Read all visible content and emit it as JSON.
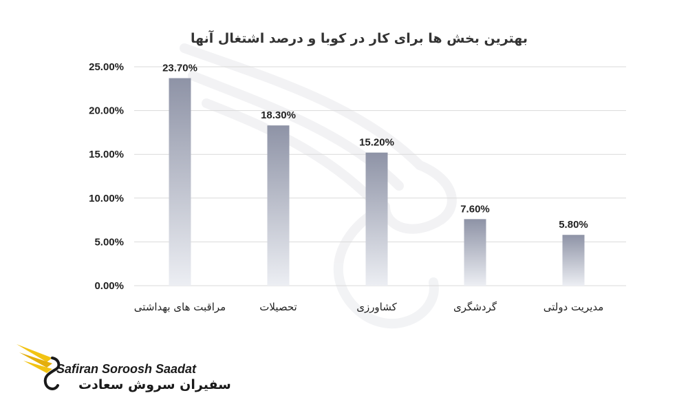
{
  "chart_data": {
    "type": "bar",
    "title": "بهترین بخش ها برای کار در کوبا و درصد اشتغال آنها",
    "categories": [
      "مراقبت های بهداشتی",
      "تحصیلات",
      "کشاورزی",
      "گردشگری",
      "مدیریت دولتی"
    ],
    "values": [
      23.7,
      18.3,
      15.2,
      7.6,
      5.8
    ],
    "data_labels": [
      "23.70%",
      "18.30%",
      "15.20%",
      "7.60%",
      "5.80%"
    ],
    "yticks": [
      "0.00%",
      "5.00%",
      "10.00%",
      "15.00%",
      "20.00%",
      "25.00%"
    ],
    "ylim": [
      0,
      25
    ],
    "grid": true,
    "legend": "none",
    "bar_gradient_top": "#8e93a6",
    "bar_gradient_bottom": "#eceef3"
  },
  "logo": {
    "text_en": "Safiran Soroosh Saadat",
    "text_fa": "سفیران سروش سعادت",
    "wing_color": "#f2c313"
  }
}
